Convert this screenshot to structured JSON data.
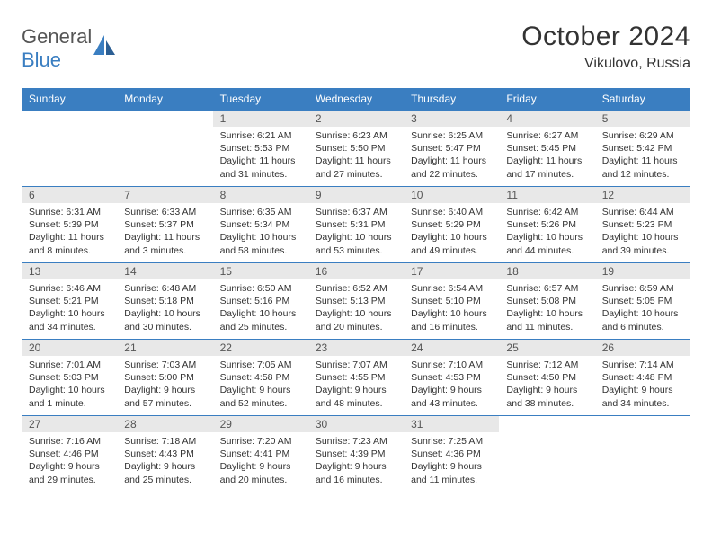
{
  "brand": {
    "text_gray": "General",
    "text_blue": "Blue",
    "icon_color": "#3a7ec1"
  },
  "title": "October 2024",
  "location": "Vikulovo, Russia",
  "theme": {
    "header_bg": "#3a7ec1",
    "header_fg": "#ffffff",
    "daynum_bg": "#e8e8e8",
    "border_color": "#3a7ec1",
    "text_color": "#333333"
  },
  "weekdays": [
    "Sunday",
    "Monday",
    "Tuesday",
    "Wednesday",
    "Thursday",
    "Friday",
    "Saturday"
  ],
  "grid": [
    [
      null,
      null,
      {
        "n": "1",
        "sr": "6:21 AM",
        "ss": "5:53 PM",
        "dl": "11 hours and 31 minutes."
      },
      {
        "n": "2",
        "sr": "6:23 AM",
        "ss": "5:50 PM",
        "dl": "11 hours and 27 minutes."
      },
      {
        "n": "3",
        "sr": "6:25 AM",
        "ss": "5:47 PM",
        "dl": "11 hours and 22 minutes."
      },
      {
        "n": "4",
        "sr": "6:27 AM",
        "ss": "5:45 PM",
        "dl": "11 hours and 17 minutes."
      },
      {
        "n": "5",
        "sr": "6:29 AM",
        "ss": "5:42 PM",
        "dl": "11 hours and 12 minutes."
      }
    ],
    [
      {
        "n": "6",
        "sr": "6:31 AM",
        "ss": "5:39 PM",
        "dl": "11 hours and 8 minutes."
      },
      {
        "n": "7",
        "sr": "6:33 AM",
        "ss": "5:37 PM",
        "dl": "11 hours and 3 minutes."
      },
      {
        "n": "8",
        "sr": "6:35 AM",
        "ss": "5:34 PM",
        "dl": "10 hours and 58 minutes."
      },
      {
        "n": "9",
        "sr": "6:37 AM",
        "ss": "5:31 PM",
        "dl": "10 hours and 53 minutes."
      },
      {
        "n": "10",
        "sr": "6:40 AM",
        "ss": "5:29 PM",
        "dl": "10 hours and 49 minutes."
      },
      {
        "n": "11",
        "sr": "6:42 AM",
        "ss": "5:26 PM",
        "dl": "10 hours and 44 minutes."
      },
      {
        "n": "12",
        "sr": "6:44 AM",
        "ss": "5:23 PM",
        "dl": "10 hours and 39 minutes."
      }
    ],
    [
      {
        "n": "13",
        "sr": "6:46 AM",
        "ss": "5:21 PM",
        "dl": "10 hours and 34 minutes."
      },
      {
        "n": "14",
        "sr": "6:48 AM",
        "ss": "5:18 PM",
        "dl": "10 hours and 30 minutes."
      },
      {
        "n": "15",
        "sr": "6:50 AM",
        "ss": "5:16 PM",
        "dl": "10 hours and 25 minutes."
      },
      {
        "n": "16",
        "sr": "6:52 AM",
        "ss": "5:13 PM",
        "dl": "10 hours and 20 minutes."
      },
      {
        "n": "17",
        "sr": "6:54 AM",
        "ss": "5:10 PM",
        "dl": "10 hours and 16 minutes."
      },
      {
        "n": "18",
        "sr": "6:57 AM",
        "ss": "5:08 PM",
        "dl": "10 hours and 11 minutes."
      },
      {
        "n": "19",
        "sr": "6:59 AM",
        "ss": "5:05 PM",
        "dl": "10 hours and 6 minutes."
      }
    ],
    [
      {
        "n": "20",
        "sr": "7:01 AM",
        "ss": "5:03 PM",
        "dl": "10 hours and 1 minute."
      },
      {
        "n": "21",
        "sr": "7:03 AM",
        "ss": "5:00 PM",
        "dl": "9 hours and 57 minutes."
      },
      {
        "n": "22",
        "sr": "7:05 AM",
        "ss": "4:58 PM",
        "dl": "9 hours and 52 minutes."
      },
      {
        "n": "23",
        "sr": "7:07 AM",
        "ss": "4:55 PM",
        "dl": "9 hours and 48 minutes."
      },
      {
        "n": "24",
        "sr": "7:10 AM",
        "ss": "4:53 PM",
        "dl": "9 hours and 43 minutes."
      },
      {
        "n": "25",
        "sr": "7:12 AM",
        "ss": "4:50 PM",
        "dl": "9 hours and 38 minutes."
      },
      {
        "n": "26",
        "sr": "7:14 AM",
        "ss": "4:48 PM",
        "dl": "9 hours and 34 minutes."
      }
    ],
    [
      {
        "n": "27",
        "sr": "7:16 AM",
        "ss": "4:46 PM",
        "dl": "9 hours and 29 minutes."
      },
      {
        "n": "28",
        "sr": "7:18 AM",
        "ss": "4:43 PM",
        "dl": "9 hours and 25 minutes."
      },
      {
        "n": "29",
        "sr": "7:20 AM",
        "ss": "4:41 PM",
        "dl": "9 hours and 20 minutes."
      },
      {
        "n": "30",
        "sr": "7:23 AM",
        "ss": "4:39 PM",
        "dl": "9 hours and 16 minutes."
      },
      {
        "n": "31",
        "sr": "7:25 AM",
        "ss": "4:36 PM",
        "dl": "9 hours and 11 minutes."
      },
      null,
      null
    ]
  ],
  "labels": {
    "sunrise_prefix": "Sunrise: ",
    "sunset_prefix": "Sunset: ",
    "daylight_prefix": "Daylight: "
  }
}
